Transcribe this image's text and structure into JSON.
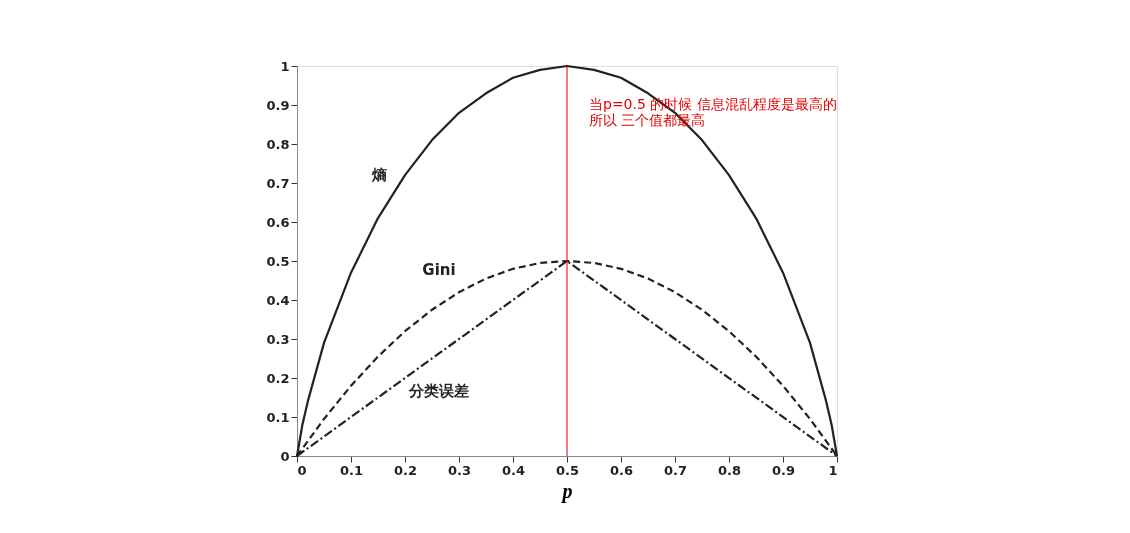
{
  "chart_data": {
    "type": "line",
    "xlabel": "p",
    "xlim": [
      0,
      1
    ],
    "ylim": [
      0,
      1
    ],
    "xticks": [
      0,
      0.1,
      0.2,
      0.3,
      0.4,
      0.5,
      0.6,
      0.7,
      0.8,
      0.9,
      1
    ],
    "yticks": [
      0,
      0.1,
      0.2,
      0.3,
      0.4,
      0.5,
      0.6,
      0.7,
      0.8,
      0.9,
      1
    ],
    "grid": false,
    "marker": "none",
    "series": [
      {
        "name": "熵",
        "color": "#222222",
        "line_style": "solid",
        "x": [
          0,
          0.01,
          0.02,
          0.05,
          0.1,
          0.15,
          0.2,
          0.25,
          0.3,
          0.35,
          0.4,
          0.45,
          0.5,
          0.55,
          0.6,
          0.65,
          0.7,
          0.75,
          0.8,
          0.85,
          0.9,
          0.95,
          0.98,
          0.99,
          1
        ],
        "values": [
          0,
          0.08,
          0.14,
          0.29,
          0.47,
          0.61,
          0.72,
          0.81,
          0.88,
          0.93,
          0.97,
          0.99,
          1,
          0.99,
          0.97,
          0.93,
          0.88,
          0.81,
          0.72,
          0.61,
          0.47,
          0.29,
          0.14,
          0.08,
          0
        ]
      },
      {
        "name": "Gini",
        "color": "#222222",
        "line_style": "dashed",
        "x": [
          0,
          0.05,
          0.1,
          0.15,
          0.2,
          0.25,
          0.3,
          0.35,
          0.4,
          0.45,
          0.5,
          0.55,
          0.6,
          0.65,
          0.7,
          0.75,
          0.8,
          0.85,
          0.9,
          0.95,
          1
        ],
        "values": [
          0,
          0.095,
          0.18,
          0.255,
          0.32,
          0.375,
          0.42,
          0.455,
          0.48,
          0.495,
          0.5,
          0.495,
          0.48,
          0.455,
          0.42,
          0.375,
          0.32,
          0.255,
          0.18,
          0.095,
          0
        ]
      },
      {
        "name": "分类误差",
        "color": "#222222",
        "line_style": "dotted",
        "x": [
          0,
          0.5,
          1
        ],
        "values": [
          0,
          0.5,
          0
        ]
      }
    ],
    "ref_lines": [
      {
        "axis": "x",
        "value": 0.5,
        "label": "当p=0.5 的时候 信息混乱程度是最高的所以 三个值都最高",
        "color": "#e00000"
      }
    ]
  }
}
